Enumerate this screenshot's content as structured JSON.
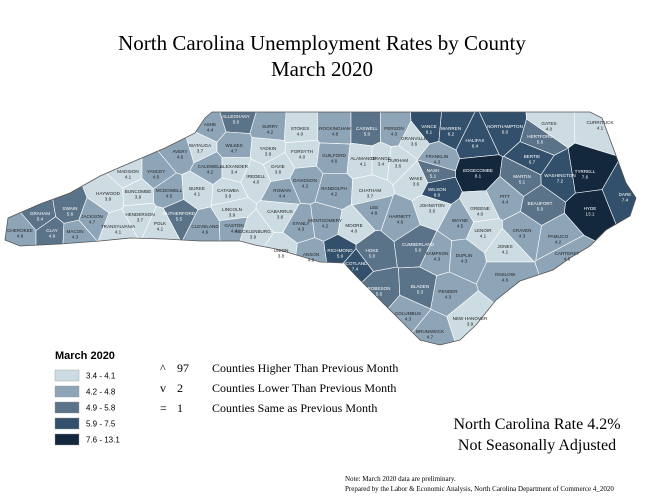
{
  "title": "North Carolina Unemployment Rates by County",
  "subtitle": "March 2020",
  "legend": {
    "title": "March 2020",
    "classes": [
      {
        "label": "3.4 - 4.1",
        "range": [
          3.4,
          4.1
        ],
        "color": "#cddce3"
      },
      {
        "label": "4.2 - 4.8",
        "range": [
          4.2,
          4.8
        ],
        "color": "#8ea5b8"
      },
      {
        "label": "4.9 - 5.8",
        "range": [
          4.9,
          5.8
        ],
        "color": "#5a7389"
      },
      {
        "label": "5.9 - 7.5",
        "range": [
          5.9,
          7.5
        ],
        "color": "#32506b"
      },
      {
        "label": "7.6 - 13.1",
        "range": [
          7.6,
          13.1
        ],
        "color": "#13283c"
      }
    ]
  },
  "changes": [
    {
      "symbol": "^",
      "count": 97,
      "text": "Counties Higher Than Previous Month"
    },
    {
      "symbol": "v",
      "count": 2,
      "text": "Counties Lower Than Previous Month"
    },
    {
      "symbol": "=",
      "count": 1,
      "text": "Counties Same as Previous Month"
    }
  ],
  "state_rate": "North Carolina Rate 4.2%",
  "adjustment": "Not Seasonally Adjusted",
  "notes": [
    "Note: March 2020 data are preliminary.",
    "Prepared by the Labor & Economic Analysis, North Carolina Department of Commerce 4_2020"
  ],
  "county_names": [
    "ASHE",
    "ALLEGHANY",
    "SURRY",
    "STOKES",
    "ROCKINGHAM",
    "CASWELL",
    "PERSON",
    "GRANVILLE",
    "VANCE",
    "WARREN",
    "NORTHAMPTON",
    "GATES",
    "CURRITUCK",
    "WATAUGA",
    "WILKES",
    "YADKIN",
    "FORSYTH",
    "GUILFORD",
    "ALAMANCE",
    "ORANGE",
    "DURHAM",
    "HALIFAX",
    "HERTFORD",
    "BERTIE",
    "FRANKLIN",
    "NASH",
    "EDGECOMBE",
    "MARTIN",
    "WASHINGTON",
    "TYRRELL",
    "DARE",
    "AVERY",
    "MADISON",
    "YANCEY",
    "CALDWELL",
    "ALEXANDER",
    "IREDELL",
    "DAVIE",
    "DAVIDSON",
    "RANDOLPH",
    "CHATHAM",
    "WAKE",
    "WILSON",
    "PITT",
    "BEAUFORT",
    "HYDE",
    "HAYWOOD",
    "BUNCOMBE",
    "MCDOWELL",
    "BURKE",
    "CATAWBA",
    "ROWAN",
    "GREENE",
    "JOHNSTON",
    "LINCOLN",
    "CABARRUS",
    "HENDERSON",
    "RUTHERFORD",
    "POLK",
    "CLEVELAND",
    "GASTON",
    "STANLY",
    "MONTGOMERY",
    "MOORE",
    "LEE",
    "HARNETT",
    "WAYNE",
    "LENOIR",
    "CRAVEN",
    "PAMLICO",
    "GRAHAM",
    "SWAIN",
    "JACKSON",
    "TRANSYLVANIA",
    "CHEROKEE",
    "CLAY",
    "MACON",
    "MECKLENBURG",
    "UNION",
    "ANSON",
    "RICHMOND",
    "HOKE",
    "CUMBERLAND",
    "SAMPSON",
    "DUPLIN",
    "JONES",
    "ONSLOW",
    "CARTERET",
    "SCOTLAND",
    "ROBESON",
    "BLADEN",
    "PENDER",
    "COLUMBUS",
    "NEW HANOVER",
    "BRUNSWICK"
  ],
  "rates": [
    4.4,
    5.0,
    4.2,
    4.0,
    4.8,
    5.0,
    4.3,
    3.6,
    6.1,
    6.2,
    6.0,
    4.0,
    4.1,
    3.7,
    4.7,
    3.9,
    4.0,
    4.6,
    4.1,
    3.4,
    3.6,
    6.4,
    5.6,
    6.7,
    4.3,
    5.1,
    8.1,
    5.1,
    7.2,
    7.6,
    7.4,
    4.6,
    4.1,
    4.5,
    4.2,
    3.4,
    4.0,
    3.8,
    4.2,
    4.2,
    3.7,
    3.6,
    6.0,
    4.4,
    5.0,
    13.1,
    3.9,
    3.9,
    4.5,
    4.1,
    3.9,
    4.4,
    4.0,
    3.6,
    3.9,
    3.8,
    3.7,
    5.5,
    4.1,
    4.6,
    4.4,
    4.3,
    4.2,
    4.0,
    4.8,
    4.6,
    4.5,
    4.1,
    4.3,
    4.2,
    5.4,
    5.6,
    4.7,
    4.1,
    4.8,
    4.9,
    4.3,
    3.9,
    3.8,
    4.8,
    5.9,
    5.0,
    5.6,
    4.3,
    4.3,
    4.1,
    4.6,
    4.6,
    7.4,
    5.6,
    5.3,
    4.3,
    4.3,
    3.9,
    4.7
  ],
  "rate_labels": [
    "4.4",
    "5.0",
    "4.2",
    "4.0",
    "4.8",
    "5.0",
    "4.3",
    "3.6",
    "6.1",
    "6.2",
    "6.0",
    "4.0",
    "4.1",
    "3.7",
    "4.7",
    "3.9",
    "4.0",
    "4.6",
    "4.1",
    "3.4",
    "3.6",
    "6.4",
    "5.6",
    "6.7",
    "4.3",
    "5.1",
    "8.1",
    "5.1",
    "7.2",
    "7.6",
    "7.4",
    "4.6",
    "4.1",
    "4.5",
    "4.2",
    "3.4",
    "4.0",
    "3.8",
    "4.2",
    "4.2",
    "3.7",
    "3.6",
    "6.0",
    "4.4",
    "5.0",
    "13.1",
    "3.9",
    "3.9",
    "4.5",
    "4.1",
    "3.9",
    "4.4",
    "4.0",
    "3.6",
    "3.9",
    "3.8",
    "3.7",
    "5.5",
    "4.1",
    "4.6",
    "4.4",
    "4.3",
    "4.2",
    "4.0",
    "4.8",
    "4.6",
    "4.5",
    "4.1",
    "4.3",
    "4.2",
    "5.4",
    "5.6",
    "4.7",
    "4.1",
    "4.8",
    "4.9",
    "4.3",
    "3.9",
    "3.8",
    "4.8",
    "5.9",
    "5.0",
    "5.6",
    "4.3",
    "4.3",
    "4.1",
    "4.6",
    "4.6",
    "7.4",
    "5.6",
    "5.3",
    "4.3",
    "4.3",
    "3.9",
    "4.7"
  ]
}
